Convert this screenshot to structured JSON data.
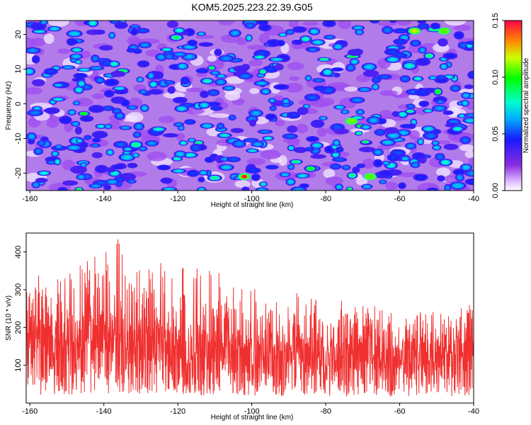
{
  "title": "KOM5.2025.223.22.39.G05",
  "colors": {
    "snr_line": "#f03030",
    "frame": "#000000"
  },
  "chart_data": [
    {
      "type": "heatmap",
      "xlabel": "Height of straight line (km)",
      "ylabel": "Frequency (Hz)",
      "xlim": [
        -161,
        -40
      ],
      "ylim": [
        -25,
        24
      ],
      "xticks": [
        -160,
        -140,
        -120,
        -100,
        -80,
        -60,
        -40
      ],
      "yticks": [
        -20,
        -10,
        0,
        10,
        20
      ],
      "colorbar": {
        "label": "Normalized spectral amplitude",
        "range": [
          0,
          0.15
        ],
        "ticks": [
          "0.00",
          "0.05",
          "0.10",
          "0.15"
        ],
        "colormap": "rainbow"
      },
      "note": "Noisy spectral amplitude field, typical values 0.02-0.07, isolated peaks up to ~0.15 near -102 km / -21 Hz"
    },
    {
      "type": "line",
      "xlabel": "Height of straight line (km)",
      "ylabel": "SNR (10 * v/v)",
      "xlim": [
        -161,
        -40
      ],
      "ylim": [
        0,
        450
      ],
      "xticks": [
        -160,
        -140,
        -120,
        -100,
        -80,
        -60,
        -40
      ],
      "yticks": [
        100,
        200,
        300,
        400
      ],
      "envelope": {
        "x": [
          -161,
          -150,
          -140,
          -135,
          -130,
          -120,
          -110,
          -100,
          -90,
          -80,
          -70,
          -60,
          -50,
          -40
        ],
        "max": [
          340,
          360,
          400,
          450,
          380,
          430,
          350,
          310,
          300,
          280,
          260,
          250,
          270,
          300
        ],
        "typ": [
          150,
          150,
          155,
          160,
          150,
          145,
          130,
          125,
          120,
          118,
          115,
          115,
          120,
          125
        ]
      },
      "n_points": 1800
    }
  ]
}
